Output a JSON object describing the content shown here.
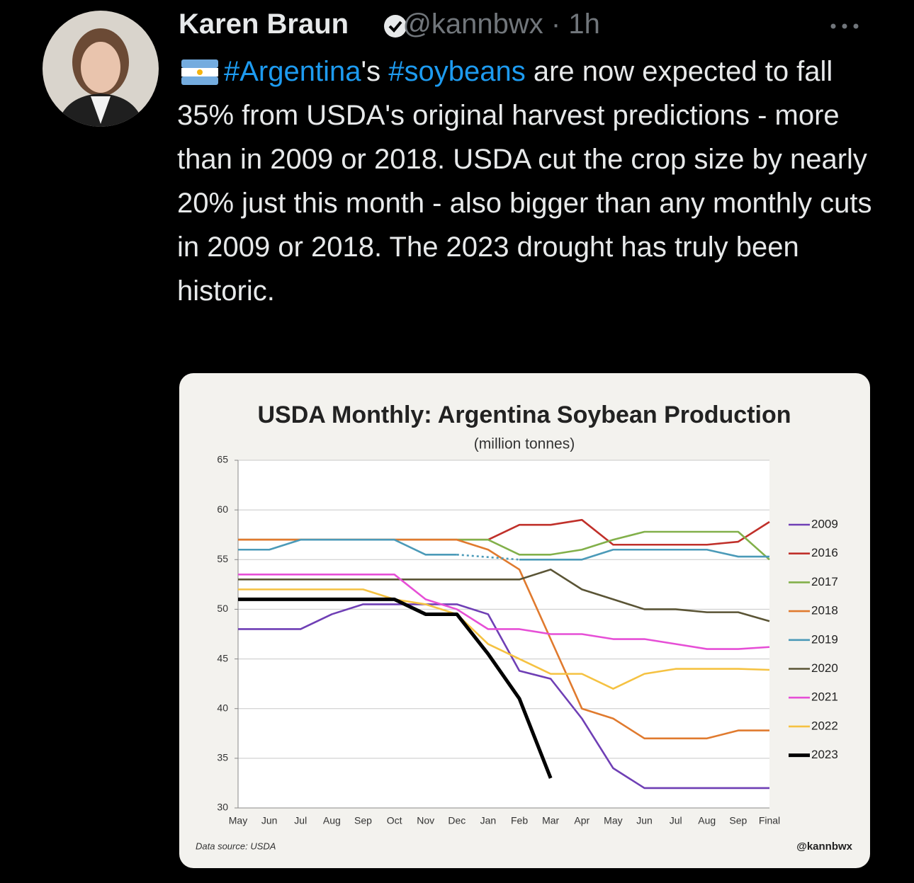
{
  "tweet": {
    "author": "Karen Braun",
    "handle": "@kannbwx",
    "time": "1h",
    "text_parts": [
      "#Argentina",
      "'s ",
      "#soybeans",
      " are now expected to fall 35% from USDA's original harvest predictions - more than in 2009 or 2018. USDA cut the crop size by nearly 20% just this month - also bigger than any monthly cuts in 2009 or 2018. The 2023 drought has truly been historic."
    ]
  },
  "chart_data": {
    "type": "line",
    "title": "USDA Monthly: Argentina Soybean Production",
    "subtitle": "(million tonnes)",
    "categories": [
      "May",
      "Jun",
      "Jul",
      "Aug",
      "Sep",
      "Oct",
      "Nov",
      "Dec",
      "Jan",
      "Feb",
      "Mar",
      "Apr",
      "May",
      "Jun",
      "Jul",
      "Aug",
      "Sep",
      "Final"
    ],
    "ylim": [
      30,
      65
    ],
    "yticks": [
      30,
      35,
      40,
      45,
      50,
      55,
      60,
      65
    ],
    "grid": true,
    "legend": "right",
    "series": [
      {
        "name": "2009",
        "color": "#6f3fb5",
        "values": [
          48,
          48,
          48,
          49.5,
          50.5,
          50.5,
          50.5,
          50.5,
          49.5,
          43.8,
          43,
          39,
          34,
          32,
          32,
          32,
          32,
          32
        ]
      },
      {
        "name": "2016",
        "color": "#c0302a",
        "values": [
          57,
          57,
          57,
          57,
          57,
          57,
          57,
          57,
          57,
          58.5,
          58.5,
          59,
          56.5,
          56.5,
          56.5,
          56.5,
          56.8,
          58.8
        ]
      },
      {
        "name": "2017",
        "color": "#82b04a",
        "values": [
          57,
          57,
          57,
          57,
          57,
          57,
          57,
          57,
          57,
          55.5,
          55.5,
          56,
          57,
          57.8,
          57.8,
          57.8,
          57.8,
          55
        ]
      },
      {
        "name": "2018",
        "color": "#e07a2e",
        "values": [
          57,
          57,
          57,
          57,
          57,
          57,
          57,
          57,
          56,
          54,
          47,
          40,
          39,
          37,
          37,
          37,
          37.8,
          37.8
        ]
      },
      {
        "name": "2019",
        "color": "#4b9ab8",
        "values": [
          56,
          56,
          57,
          57,
          57,
          57,
          55.5,
          55.5,
          null,
          55,
          55,
          55,
          56,
          56,
          56,
          56,
          55.3,
          55.3
        ]
      },
      {
        "name": "2020",
        "color": "#5a5435",
        "values": [
          53,
          53,
          53,
          53,
          53,
          53,
          53,
          53,
          53,
          53,
          54,
          52,
          51,
          50,
          50,
          49.7,
          49.7,
          48.8
        ]
      },
      {
        "name": "2021",
        "color": "#e64fd6",
        "values": [
          53.5,
          53.5,
          53.5,
          53.5,
          53.5,
          53.5,
          51,
          50,
          48,
          48,
          47.5,
          47.5,
          47,
          47,
          46.5,
          46,
          46,
          46.2
        ]
      },
      {
        "name": "2022",
        "color": "#f5c242",
        "values": [
          52,
          52,
          52,
          52,
          52,
          51,
          50.5,
          49.5,
          46.5,
          45,
          43.5,
          43.5,
          42,
          43.5,
          44,
          44,
          44,
          43.9
        ]
      },
      {
        "name": "2023",
        "color": "#000000",
        "values": [
          51,
          51,
          51,
          51,
          51,
          51,
          49.5,
          49.5,
          45.5,
          41,
          33,
          null,
          null,
          null,
          null,
          null,
          null,
          null
        ]
      }
    ],
    "source": "Data source: USDA",
    "credit": "@kannbwx"
  }
}
